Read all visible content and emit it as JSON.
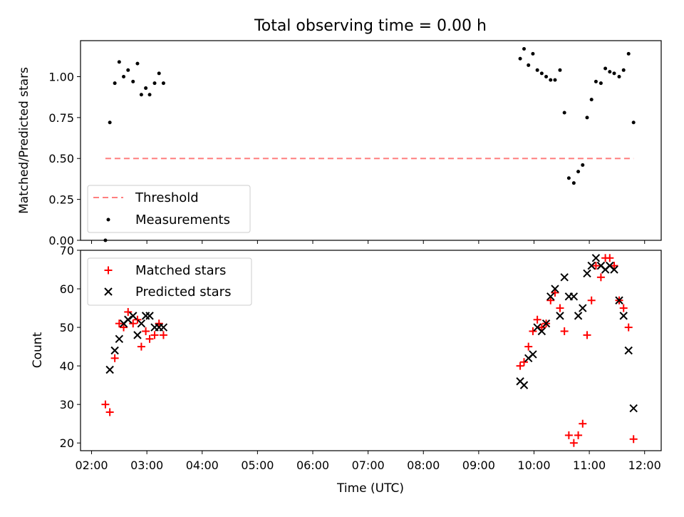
{
  "title": "Total observing time = 0.00 h",
  "chart_data": [
    {
      "type": "scatter",
      "ylabel": "Matched/Predicted stars",
      "xlim": [
        1.8,
        12.3
      ],
      "ylim": [
        0.0,
        1.22
      ],
      "yticks": [
        0.0,
        0.25,
        0.5,
        0.75,
        1.0
      ],
      "ytick_labels": [
        "0.00",
        "0.25",
        "0.50",
        "0.75",
        "1.00"
      ],
      "threshold": {
        "name": "Threshold",
        "value": 0.5,
        "x": [
          2.25,
          11.8
        ],
        "color": "#ff7f7f"
      },
      "series": [
        {
          "name": "Measurements",
          "color": "#000000",
          "points": [
            [
              2.25,
              0.0
            ],
            [
              2.33,
              0.72
            ],
            [
              2.42,
              0.96
            ],
            [
              2.5,
              1.09
            ],
            [
              2.58,
              1.0
            ],
            [
              2.66,
              1.04
            ],
            [
              2.75,
              0.97
            ],
            [
              2.83,
              1.08
            ],
            [
              2.9,
              0.89
            ],
            [
              2.98,
              0.93
            ],
            [
              3.05,
              0.89
            ],
            [
              3.14,
              0.96
            ],
            [
              3.22,
              1.02
            ],
            [
              3.3,
              0.96
            ],
            [
              9.75,
              1.11
            ],
            [
              9.82,
              1.17
            ],
            [
              9.9,
              1.07
            ],
            [
              9.98,
              1.14
            ],
            [
              10.06,
              1.04
            ],
            [
              10.14,
              1.02
            ],
            [
              10.22,
              1.0
            ],
            [
              10.3,
              0.98
            ],
            [
              10.38,
              0.98
            ],
            [
              10.47,
              1.04
            ],
            [
              10.55,
              0.78
            ],
            [
              10.63,
              0.38
            ],
            [
              10.72,
              0.35
            ],
            [
              10.8,
              0.42
            ],
            [
              10.88,
              0.46
            ],
            [
              10.96,
              0.75
            ],
            [
              11.04,
              0.86
            ],
            [
              11.12,
              0.97
            ],
            [
              11.21,
              0.96
            ],
            [
              11.29,
              1.05
            ],
            [
              11.37,
              1.03
            ],
            [
              11.45,
              1.02
            ],
            [
              11.54,
              1.0
            ],
            [
              11.62,
              1.04
            ],
            [
              11.71,
              1.14
            ],
            [
              11.8,
              0.72
            ]
          ]
        }
      ],
      "legend": {
        "loc": "lower-left",
        "entries": [
          "Threshold",
          "Measurements"
        ]
      }
    },
    {
      "type": "scatter",
      "ylabel": "Count",
      "xlabel": "Time (UTC)",
      "xlim": [
        1.8,
        12.3
      ],
      "ylim": [
        18,
        70
      ],
      "yticks": [
        20,
        30,
        40,
        50,
        60,
        70
      ],
      "ytick_labels": [
        "20",
        "30",
        "40",
        "50",
        "60",
        "70"
      ],
      "xticks": [
        2,
        3,
        4,
        5,
        6,
        7,
        8,
        9,
        10,
        11,
        12
      ],
      "xtick_labels": [
        "02:00",
        "03:00",
        "04:00",
        "05:00",
        "06:00",
        "07:00",
        "08:00",
        "09:00",
        "10:00",
        "11:00",
        "12:00"
      ],
      "series": [
        {
          "name": "Matched stars",
          "marker": "plus",
          "color": "#ff0000",
          "points": [
            [
              2.25,
              30
            ],
            [
              2.33,
              28
            ],
            [
              2.42,
              42
            ],
            [
              2.5,
              51
            ],
            [
              2.58,
              50
            ],
            [
              2.66,
              54
            ],
            [
              2.75,
              51
            ],
            [
              2.83,
              52
            ],
            [
              2.9,
              45
            ],
            [
              2.98,
              49
            ],
            [
              3.05,
              47
            ],
            [
              3.14,
              48
            ],
            [
              3.22,
              51
            ],
            [
              3.3,
              48
            ],
            [
              9.75,
              40
            ],
            [
              9.82,
              41
            ],
            [
              9.9,
              45
            ],
            [
              9.98,
              49
            ],
            [
              10.06,
              52
            ],
            [
              10.14,
              50
            ],
            [
              10.22,
              51
            ],
            [
              10.3,
              57
            ],
            [
              10.38,
              59
            ],
            [
              10.47,
              55
            ],
            [
              10.55,
              49
            ],
            [
              10.63,
              22
            ],
            [
              10.72,
              20
            ],
            [
              10.8,
              22
            ],
            [
              10.88,
              25
            ],
            [
              10.96,
              48
            ],
            [
              11.04,
              57
            ],
            [
              11.12,
              66
            ],
            [
              11.21,
              63
            ],
            [
              11.29,
              68
            ],
            [
              11.37,
              68
            ],
            [
              11.45,
              66
            ],
            [
              11.54,
              57
            ],
            [
              11.62,
              55
            ],
            [
              11.71,
              50
            ],
            [
              11.8,
              21
            ]
          ]
        },
        {
          "name": "Predicted stars",
          "marker": "x",
          "color": "#000000",
          "points": [
            [
              2.33,
              39
            ],
            [
              2.42,
              44
            ],
            [
              2.5,
              47
            ],
            [
              2.58,
              51
            ],
            [
              2.66,
              52
            ],
            [
              2.75,
              53
            ],
            [
              2.83,
              48
            ],
            [
              2.9,
              51
            ],
            [
              2.98,
              53
            ],
            [
              3.05,
              53
            ],
            [
              3.14,
              50
            ],
            [
              3.22,
              50
            ],
            [
              3.3,
              50
            ],
            [
              9.75,
              36
            ],
            [
              9.82,
              35
            ],
            [
              9.9,
              42
            ],
            [
              9.98,
              43
            ],
            [
              10.06,
              50
            ],
            [
              10.14,
              49
            ],
            [
              10.22,
              51
            ],
            [
              10.3,
              58
            ],
            [
              10.38,
              60
            ],
            [
              10.47,
              53
            ],
            [
              10.55,
              63
            ],
            [
              10.63,
              58
            ],
            [
              10.72,
              58
            ],
            [
              10.8,
              53
            ],
            [
              10.88,
              55
            ],
            [
              10.96,
              64
            ],
            [
              11.04,
              66
            ],
            [
              11.12,
              68
            ],
            [
              11.21,
              66
            ],
            [
              11.29,
              65
            ],
            [
              11.37,
              66
            ],
            [
              11.45,
              65
            ],
            [
              11.54,
              57
            ],
            [
              11.62,
              53
            ],
            [
              11.71,
              44
            ],
            [
              11.8,
              29
            ]
          ]
        }
      ],
      "legend": {
        "loc": "upper-left",
        "entries": [
          "Matched stars",
          "Predicted stars"
        ]
      }
    }
  ]
}
